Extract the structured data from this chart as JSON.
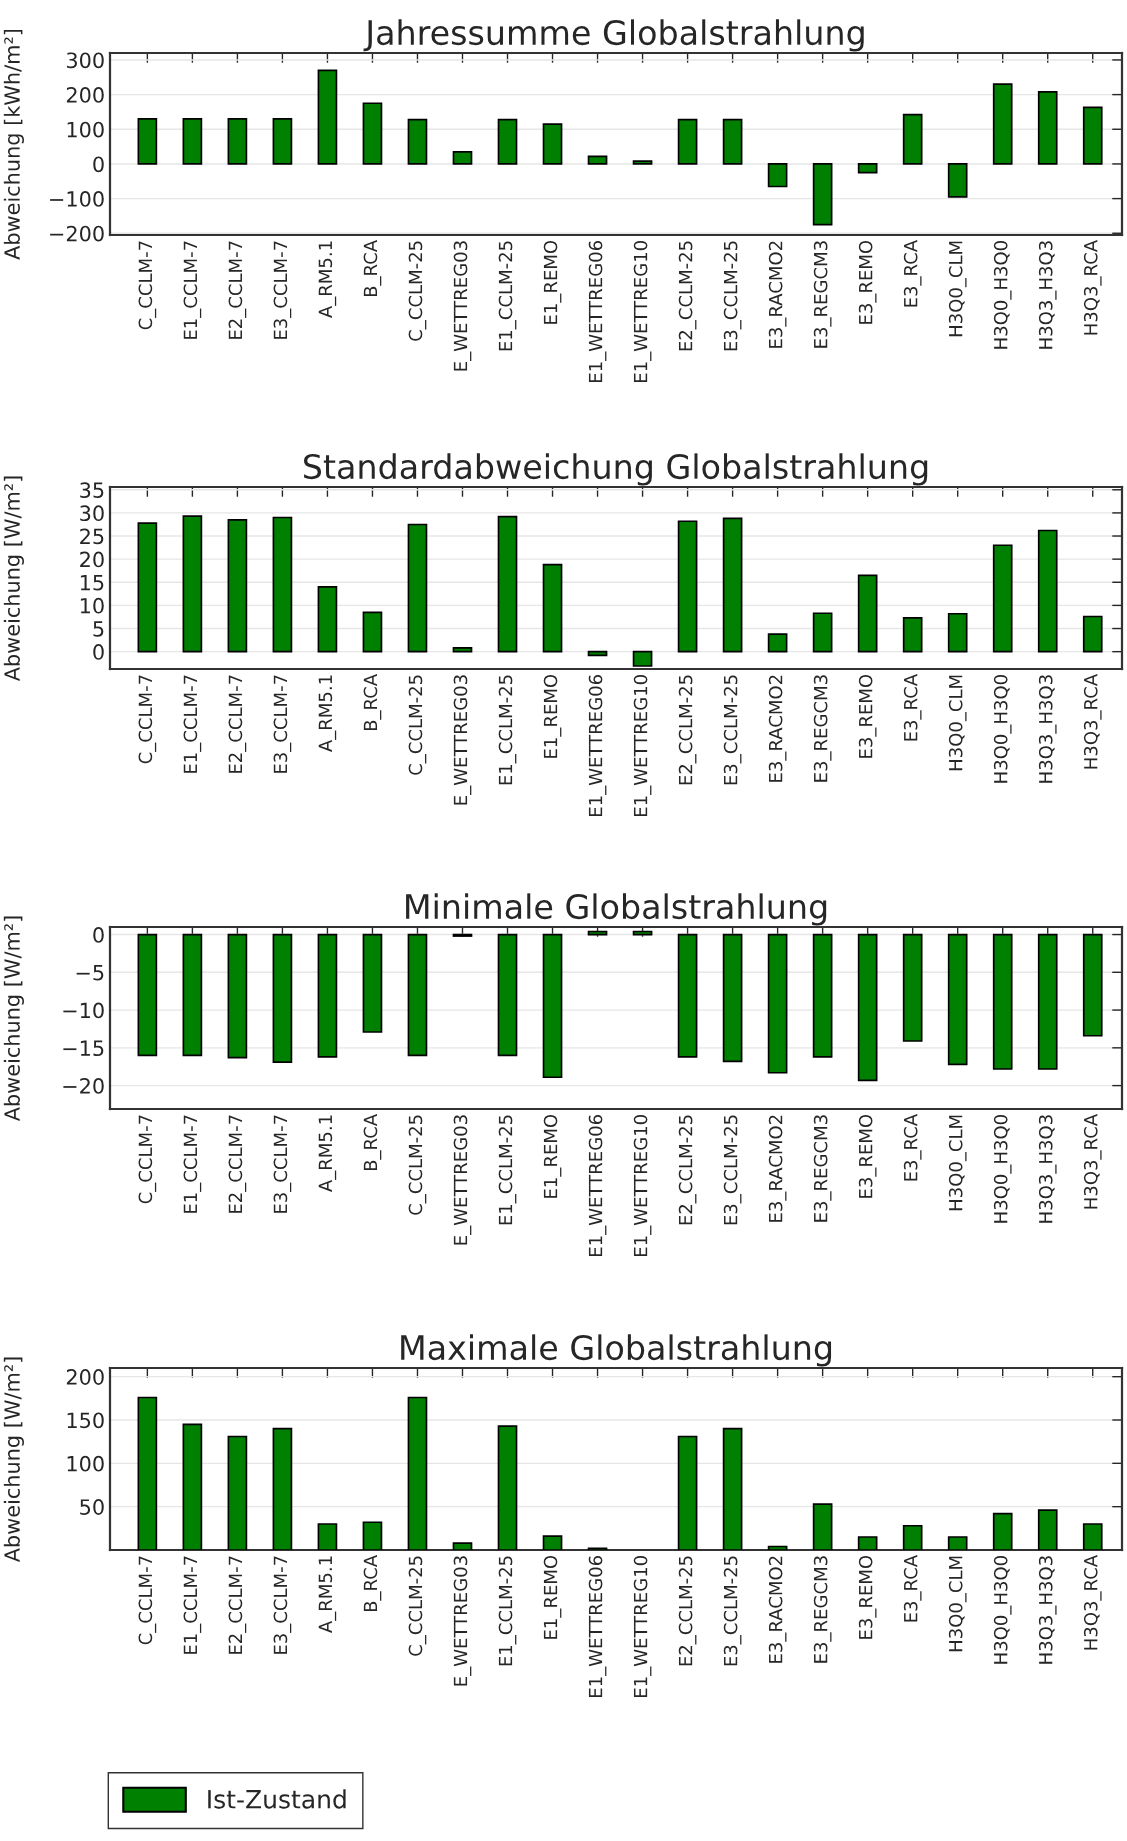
{
  "chart_data": [
    {
      "type": "bar",
      "title": "Jahressumme Globalstrahlung",
      "ylabel": "Abweichung [kWh/m²]",
      "categories": [
        "C_CCLM-7",
        "E1_CCLM-7",
        "E2_CCLM-7",
        "E3_CCLM-7",
        "A_RM5.1",
        "B_RCA",
        "C_CCLM-25",
        "E_WETTREG03",
        "E1_CCLM-25",
        "E1_REMO",
        "E1_WETTREG06",
        "E1_WETTREG10",
        "E2_CCLM-25",
        "E3_CCLM-25",
        "E3_RACMO2",
        "E3_REGCM3",
        "E3_REMO",
        "E3_RCA",
        "H3Q0_CLM",
        "H3Q0_H3Q0",
        "H3Q3_H3Q3",
        "H3Q3_RCA"
      ],
      "series": [
        {
          "color": "#008000",
          "values": [
            130,
            130,
            130,
            130,
            270,
            175,
            128,
            35,
            128,
            115,
            22,
            8,
            128,
            128,
            -65,
            -175,
            -25,
            142,
            -95,
            230,
            208,
            163
          ]
        }
      ],
      "ylim": [
        -205,
        320
      ],
      "yticks": [
        -200,
        -100,
        0,
        100,
        200,
        300
      ],
      "grid": "y"
    },
    {
      "type": "bar",
      "title": "Standardabweichung Globalstrahlung",
      "ylabel": "Abweichung [W/m²]",
      "categories": [
        "C_CCLM-7",
        "E1_CCLM-7",
        "E2_CCLM-7",
        "E3_CCLM-7",
        "A_RM5.1",
        "B_RCA",
        "C_CCLM-25",
        "E_WETTREG03",
        "E1_CCLM-25",
        "E1_REMO",
        "E1_WETTREG06",
        "E1_WETTREG10",
        "E2_CCLM-25",
        "E3_CCLM-25",
        "E3_RACMO2",
        "E3_REGCM3",
        "E3_REMO",
        "E3_RCA",
        "H3Q0_CLM",
        "H3Q0_H3Q0",
        "H3Q3_H3Q3",
        "H3Q3_RCA"
      ],
      "series": [
        {
          "color": "#008000",
          "values": [
            27.8,
            29.3,
            28.5,
            29,
            14,
            8.5,
            27.5,
            0.8,
            29.2,
            18.8,
            -0.8,
            -3.1,
            28.2,
            28.8,
            3.8,
            8.3,
            16.5,
            7.3,
            8.2,
            23,
            26.2,
            7.6
          ]
        }
      ],
      "ylim": [
        -3.75,
        35.6
      ],
      "yticks": [
        0,
        5,
        10,
        15,
        20,
        25,
        30,
        35
      ],
      "grid": "y"
    },
    {
      "type": "bar",
      "title": "Minimale Globalstrahlung",
      "ylabel": "Abweichung [W/m²]",
      "categories": [
        "C_CCLM-7",
        "E1_CCLM-7",
        "E2_CCLM-7",
        "E3_CCLM-7",
        "A_RM5.1",
        "B_RCA",
        "C_CCLM-25",
        "E_WETTREG03",
        "E1_CCLM-25",
        "E1_REMO",
        "E1_WETTREG06",
        "E1_WETTREG10",
        "E2_CCLM-25",
        "E3_CCLM-25",
        "E3_RACMO2",
        "E3_REGCM3",
        "E3_REMO",
        "E3_RCA",
        "H3Q0_CLM",
        "H3Q0_H3Q0",
        "H3Q3_H3Q3",
        "H3Q3_RCA"
      ],
      "series": [
        {
          "color": "#008000",
          "values": [
            -16,
            -16,
            -16.3,
            -16.9,
            -16.2,
            -12.9,
            -16,
            -0.2,
            -16,
            -18.9,
            0.4,
            0.4,
            -16.2,
            -16.8,
            -18.3,
            -16.2,
            -19.3,
            -14.1,
            -17.2,
            -17.8,
            -17.8,
            -13.4
          ]
        }
      ],
      "ylim": [
        -23.1,
        1
      ],
      "yticks": [
        {
          "value": -20,
          "label": "−20"
        },
        {
          "value": -15,
          "label": "−15"
        },
        {
          "value": -10,
          "label": "−10"
        },
        {
          "value": -5,
          "label": "−5"
        },
        0
      ],
      "grid": "y"
    },
    {
      "type": "bar",
      "title": "Maximale Globalstrahlung",
      "ylabel": "Abweichung [W/m²]",
      "categories": [
        "C_CCLM-7",
        "E1_CCLM-7",
        "E2_CCLM-7",
        "E3_CCLM-7",
        "A_RM5.1",
        "B_RCA",
        "C_CCLM-25",
        "E_WETTREG03",
        "E1_CCLM-25",
        "E1_REMO",
        "E1_WETTREG06",
        "E1_WETTREG10",
        "E2_CCLM-25",
        "E3_CCLM-25",
        "E3_RACMO2",
        "E3_REGCM3",
        "E3_REMO",
        "E3_RCA",
        "H3Q0_CLM",
        "H3Q0_H3Q0",
        "H3Q3_H3Q3",
        "H3Q3_RCA"
      ],
      "series": [
        {
          "name": "Ist-Zustand",
          "color": "#008000",
          "values": [
            176,
            145,
            131,
            140,
            30,
            32,
            176,
            8,
            143,
            16,
            2,
            null,
            131,
            140,
            4,
            53,
            15,
            28,
            15,
            42,
            46,
            30
          ]
        }
      ],
      "ylim": [
        0,
        210
      ],
      "yticks": [
        50,
        100,
        150,
        200
      ],
      "grid": "y",
      "legend": "bottom left"
    }
  ]
}
